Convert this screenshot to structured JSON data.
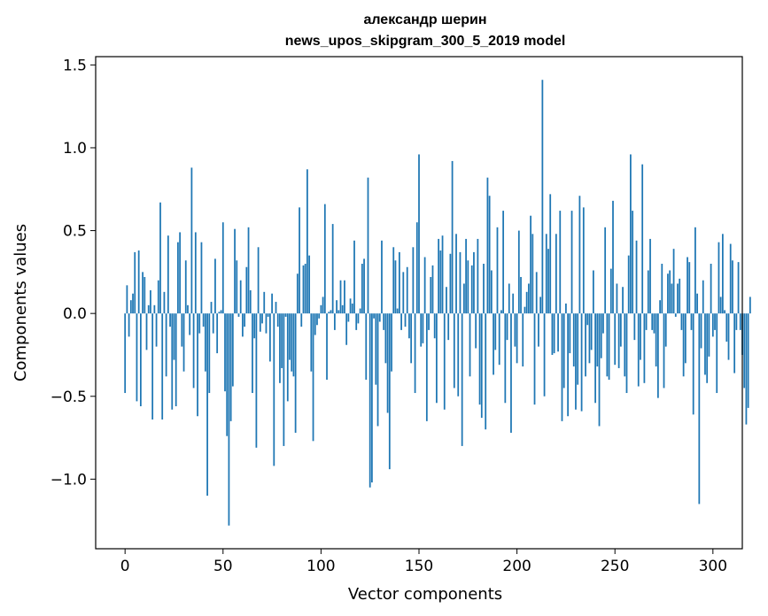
{
  "chart_data": {
    "type": "bar",
    "title_line1": "александр шерин",
    "title_line2": "news_upos_skipgram_300_5_2019 model",
    "xlabel": "Vector components",
    "ylabel": "Components values",
    "xlim": [
      -15,
      315
    ],
    "ylim": [
      -1.42,
      1.55
    ],
    "xticks": [
      0,
      50,
      100,
      150,
      200,
      250,
      300
    ],
    "xtick_labels": [
      "0",
      "50",
      "100",
      "150",
      "200",
      "250",
      "300"
    ],
    "yticks": [
      -1.0,
      -0.5,
      0.0,
      0.5,
      1.0,
      1.5
    ],
    "ytick_labels": [
      "−1.0",
      "−0.5",
      "0.0",
      "0.5",
      "1.0",
      "1.5"
    ],
    "bar_color": "#1f77b4",
    "grid": false,
    "values": [
      -0.48,
      0.17,
      -0.14,
      0.08,
      0.12,
      0.37,
      -0.53,
      0.38,
      -0.56,
      0.25,
      0.22,
      -0.22,
      0.05,
      0.14,
      -0.64,
      0.05,
      -0.2,
      0.2,
      0.67,
      -0.64,
      0.13,
      -0.38,
      0.47,
      -0.08,
      -0.58,
      -0.28,
      -0.56,
      0.43,
      0.49,
      -0.2,
      -0.35,
      0.32,
      0.05,
      -0.13,
      0.88,
      -0.45,
      0.49,
      -0.62,
      -0.12,
      0.43,
      -0.08,
      -0.35,
      -1.1,
      -0.48,
      0.07,
      -0.12,
      0.33,
      -0.24,
      0.01,
      0.02,
      0.55,
      -0.47,
      -0.74,
      -1.28,
      -0.65,
      -0.44,
      0.51,
      0.32,
      -0.02,
      0.2,
      -0.14,
      -0.08,
      0.28,
      0.52,
      0.14,
      -0.48,
      -0.15,
      -0.81,
      0.4,
      -0.11,
      -0.06,
      0.13,
      -0.12,
      -0.02,
      -0.29,
      0.12,
      -0.92,
      0.07,
      -0.08,
      -0.42,
      -0.33,
      -0.8,
      -0.02,
      -0.53,
      -0.28,
      -0.35,
      -0.38,
      -0.72,
      0.24,
      0.64,
      -0.08,
      0.29,
      0.3,
      0.87,
      0.35,
      -0.35,
      -0.77,
      -0.13,
      -0.07,
      -0.03,
      0.05,
      0.1,
      0.66,
      -0.4,
      0.01,
      0.02,
      0.54,
      -0.1,
      0.08,
      0.02,
      0.2,
      0.05,
      0.2,
      -0.19,
      -0.05,
      0.09,
      0.06,
      0.44,
      -0.1,
      -0.06,
      0.03,
      0.3,
      0.33,
      -0.4,
      0.82,
      -1.05,
      -1.02,
      -0.03,
      -0.43,
      -0.68,
      -0.05,
      0.44,
      -0.1,
      -0.3,
      -0.6,
      -0.94,
      -0.35,
      0.4,
      0.32,
      0.03,
      0.37,
      -0.1,
      0.25,
      -0.08,
      0.28,
      -0.15,
      -0.3,
      0.4,
      -0.48,
      0.55,
      0.96,
      -0.2,
      -0.18,
      0.34,
      -0.65,
      -0.1,
      0.22,
      0.29,
      -0.15,
      -0.54,
      0.45,
      0.38,
      0.47,
      -0.58,
      0.16,
      -0.16,
      0.36,
      0.92,
      -0.45,
      0.48,
      -0.5,
      0.37,
      -0.8,
      0.18,
      0.45,
      0.32,
      -0.38,
      0.29,
      0.37,
      -0.21,
      0.45,
      -0.55,
      -0.63,
      0.3,
      -0.7,
      0.82,
      0.71,
      0.26,
      -0.37,
      -0.22,
      0.52,
      -0.31,
      0.02,
      0.62,
      -0.54,
      -0.16,
      0.18,
      -0.72,
      0.12,
      -0.2,
      -0.3,
      0.5,
      0.22,
      -0.32,
      0.04,
      0.13,
      0.18,
      0.59,
      0.48,
      -0.55,
      0.25,
      -0.2,
      0.1,
      1.41,
      -0.5,
      0.48,
      0.39,
      0.72,
      -0.25,
      -0.24,
      0.48,
      -0.23,
      0.62,
      -0.65,
      -0.45,
      0.06,
      -0.62,
      -0.24,
      0.62,
      -0.32,
      -0.58,
      -0.43,
      0.71,
      -0.59,
      0.64,
      -0.38,
      -0.07,
      -0.3,
      -0.22,
      0.26,
      -0.54,
      -0.32,
      -0.68,
      -0.27,
      -0.12,
      0.52,
      -0.38,
      -0.4,
      0.27,
      0.68,
      -0.31,
      0.18,
      -0.33,
      -0.2,
      0.16,
      -0.38,
      -0.48,
      0.35,
      0.96,
      0.62,
      -0.16,
      0.44,
      -0.44,
      -0.28,
      0.9,
      -0.42,
      -0.1,
      0.26,
      0.45,
      -0.1,
      -0.12,
      -0.32,
      -0.51,
      0.08,
      0.3,
      -0.45,
      -0.2,
      0.24,
      0.26,
      0.18,
      0.39,
      -0.02,
      0.18,
      0.21,
      -0.1,
      -0.38,
      -0.3,
      0.34,
      0.31,
      -0.1,
      -0.61,
      0.52,
      0.12,
      -1.15,
      -0.21,
      0.2,
      -0.37,
      -0.42,
      -0.26,
      0.3,
      -0.14,
      -0.1,
      -0.48,
      0.43,
      0.1,
      0.48,
      0.02,
      -0.17,
      -0.28,
      0.42,
      0.32,
      -0.36,
      -0.1,
      0.31,
      -0.1,
      -0.25,
      -0.45,
      -0.67,
      -0.57,
      0.1
    ]
  }
}
